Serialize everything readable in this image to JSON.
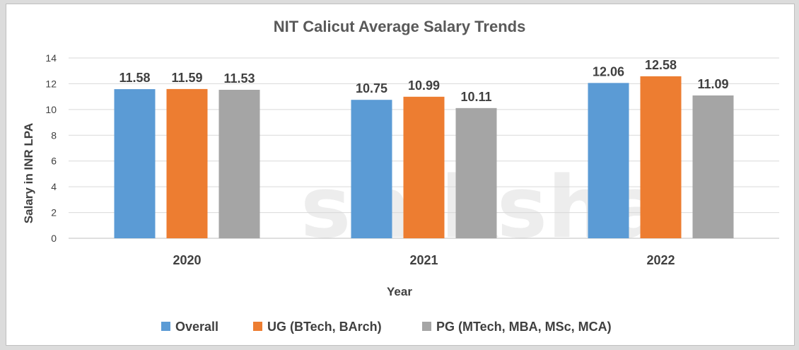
{
  "chart_data": {
    "type": "bar",
    "title": "NIT Calicut Average Salary Trends",
    "xlabel": "Year",
    "ylabel": "Salary in INR LPA",
    "categories": [
      "2020",
      "2021",
      "2022"
    ],
    "ylim": [
      0,
      14
    ],
    "yticks": [
      0,
      2,
      4,
      6,
      8,
      10,
      12,
      14
    ],
    "grid": true,
    "legend_position": "bottom",
    "series": [
      {
        "name": "Overall",
        "color": "#5b9bd5",
        "values": [
          11.58,
          10.75,
          12.06
        ],
        "labels": [
          "11.58",
          "10.75",
          "12.06"
        ]
      },
      {
        "name": "UG (BTech, BArch)",
        "color": "#ed7d31",
        "values": [
          11.59,
          10.99,
          12.58
        ],
        "labels": [
          "11.59",
          "10.99",
          "12.58"
        ]
      },
      {
        "name": "PG (MTech, MBA, MSc, MCA)",
        "color": "#a5a5a5",
        "values": [
          11.53,
          10.11,
          11.09
        ],
        "labels": [
          "11.53",
          "10.11",
          "11.09"
        ]
      }
    ],
    "watermark": "shiksha"
  }
}
